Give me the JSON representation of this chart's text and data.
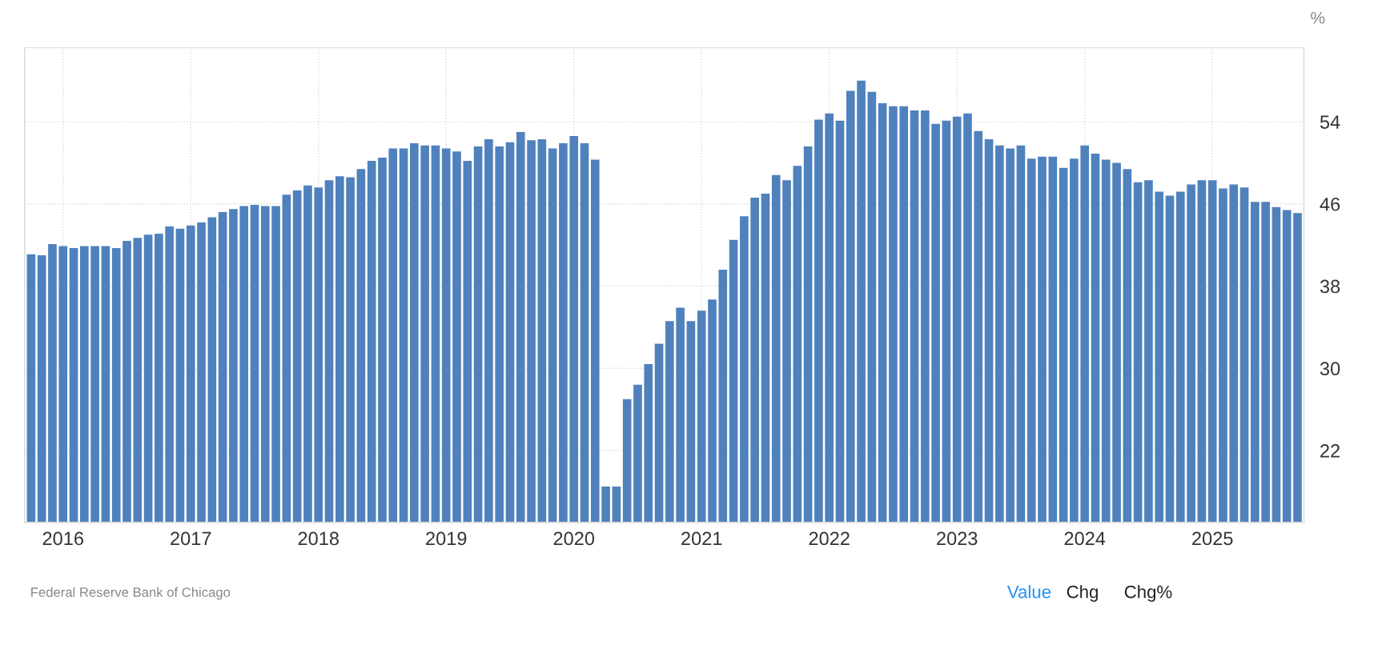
{
  "chart_data": {
    "type": "bar",
    "ylabel": "%",
    "categories": [
      null,
      null,
      null,
      "2016",
      null,
      null,
      null,
      null,
      null,
      null,
      null,
      null,
      null,
      null,
      null,
      "2017",
      null,
      null,
      null,
      null,
      null,
      null,
      null,
      null,
      null,
      null,
      null,
      "2018",
      null,
      null,
      null,
      null,
      null,
      null,
      null,
      null,
      null,
      null,
      null,
      "2019",
      null,
      null,
      null,
      null,
      null,
      null,
      null,
      null,
      null,
      null,
      null,
      "2020",
      null,
      null,
      null,
      null,
      null,
      null,
      null,
      null,
      null,
      null,
      null,
      "2021",
      null,
      null,
      null,
      null,
      null,
      null,
      null,
      null,
      null,
      null,
      null,
      "2022",
      null,
      null,
      null,
      null,
      null,
      null,
      null,
      null,
      null,
      null,
      null,
      "2023",
      null,
      null,
      null,
      null,
      null,
      null,
      null,
      null,
      null,
      null,
      null,
      "2024",
      null,
      null,
      null,
      null,
      null,
      null,
      null,
      null,
      null,
      null,
      null,
      "2025",
      null,
      null,
      null,
      null,
      null,
      null,
      null,
      null
    ],
    "values": [
      41.1,
      41.0,
      42.1,
      41.9,
      41.7,
      41.9,
      41.9,
      41.9,
      41.7,
      42.4,
      42.7,
      43.0,
      43.1,
      43.8,
      43.6,
      43.9,
      44.2,
      44.7,
      45.2,
      45.5,
      45.8,
      45.9,
      45.8,
      45.8,
      46.9,
      47.3,
      47.8,
      47.6,
      48.3,
      48.7,
      48.6,
      49.4,
      50.2,
      50.5,
      51.4,
      51.4,
      51.9,
      51.7,
      51.7,
      51.4,
      51.1,
      50.2,
      51.6,
      52.3,
      51.6,
      52.0,
      53.0,
      52.2,
      52.3,
      51.4,
      51.9,
      52.6,
      51.9,
      50.3,
      18.5,
      18.5,
      27.0,
      28.4,
      30.4,
      32.4,
      34.6,
      35.9,
      34.6,
      35.6,
      36.7,
      39.6,
      42.5,
      44.8,
      46.6,
      47.0,
      48.8,
      48.3,
      49.7,
      51.6,
      54.2,
      54.8,
      54.1,
      57.0,
      58.0,
      56.9,
      55.8,
      55.5,
      55.5,
      55.1,
      55.1,
      53.8,
      54.1,
      54.5,
      54.8,
      53.1,
      52.3,
      51.7,
      51.4,
      51.7,
      50.4,
      50.6,
      50.6,
      49.5,
      50.4,
      51.7,
      50.9,
      50.3,
      50.0,
      49.4,
      48.1,
      48.3,
      47.2,
      46.8,
      47.2,
      47.9,
      48.3,
      48.3,
      47.5,
      47.9,
      47.6,
      46.2,
      46.2,
      45.7,
      45.4,
      45.1
    ],
    "color": "#4f81bd",
    "ylim": [
      15,
      61.2
    ],
    "yticks": [
      22,
      30,
      38,
      46,
      54
    ],
    "grid": true,
    "legend": false,
    "annotations": [
      "Federal Reserve Bank of Chicago",
      "Value",
      "Chg",
      "Chg%"
    ]
  }
}
